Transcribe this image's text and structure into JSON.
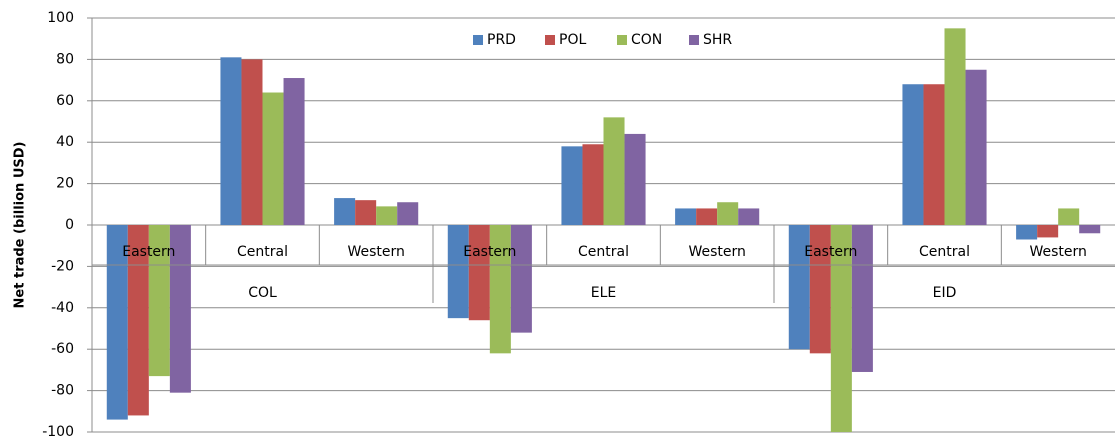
{
  "chart_data": {
    "type": "bar",
    "y_label": "Net trade (billion USD)",
    "groups": [
      {
        "label": "COL",
        "categories": [
          "Eastern",
          "Central",
          "Western"
        ]
      },
      {
        "label": "ELE",
        "categories": [
          "Eastern",
          "Central",
          "Western"
        ]
      },
      {
        "label": "EID",
        "categories": [
          "Eastern",
          "Central",
          "Western"
        ]
      }
    ],
    "series": [
      {
        "name": "PRD",
        "color": "#4f81bd",
        "values": [
          -94,
          81,
          13,
          -45,
          38,
          8,
          -60,
          68,
          -7
        ]
      },
      {
        "name": "POL",
        "color": "#c0504d",
        "values": [
          -92,
          80,
          12,
          -46,
          39,
          8,
          -62,
          68,
          -6
        ]
      },
      {
        "name": "CON",
        "color": "#9bbb59",
        "values": [
          -73,
          64,
          9,
          -62,
          52,
          11,
          -100,
          95,
          8
        ]
      },
      {
        "name": "SHR",
        "color": "#8064a2",
        "values": [
          -81,
          71,
          11,
          -52,
          44,
          8,
          -71,
          75,
          -4
        ]
      }
    ],
    "ylim": [
      -100,
      100
    ],
    "yticks": [
      -100,
      -80,
      -60,
      -40,
      -20,
      0,
      20,
      40,
      60,
      80,
      100
    ],
    "grid": true,
    "legend": "top"
  }
}
